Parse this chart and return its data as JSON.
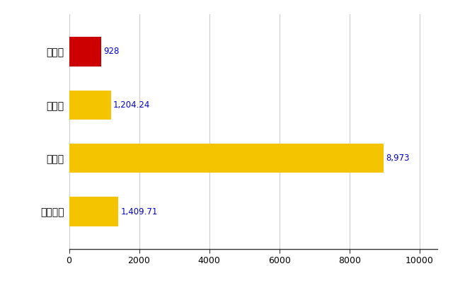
{
  "categories": [
    "三豊市",
    "県平均",
    "県最大",
    "全国平均"
  ],
  "values": [
    928,
    1204.24,
    8973,
    1409.71
  ],
  "labels": [
    "928",
    "1,204.24",
    "8,973",
    "1,409.71"
  ],
  "bar_colors": [
    "#cc0000",
    "#f5c400",
    "#f5c400",
    "#f5c400"
  ],
  "xlim": [
    0,
    10500
  ],
  "xticks": [
    0,
    2000,
    4000,
    6000,
    8000,
    10000
  ],
  "xtick_labels": [
    "0",
    "2000",
    "4000",
    "6000",
    "8000",
    "10000"
  ],
  "background_color": "#ffffff",
  "grid_color": "#cccccc",
  "label_color": "#0000cc",
  "bar_height": 0.55,
  "figsize": [
    6.5,
    4.0
  ],
  "dpi": 100
}
